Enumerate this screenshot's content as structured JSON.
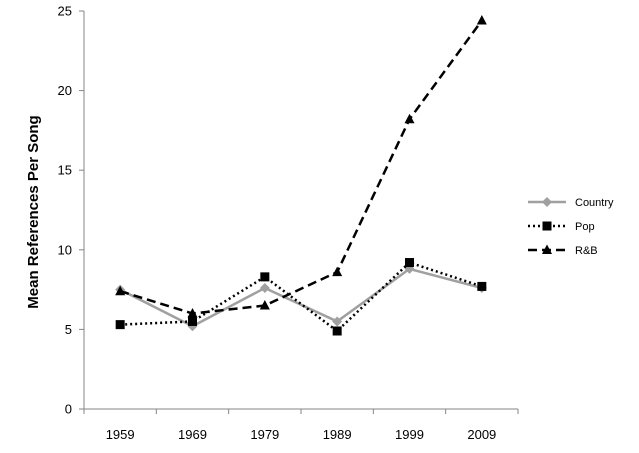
{
  "chart_data": {
    "type": "line",
    "title": "",
    "xlabel": "",
    "ylabel": "Mean References Per Song",
    "ylim": [
      0,
      25
    ],
    "yticks": [
      0,
      5,
      10,
      15,
      20,
      25
    ],
    "categories": [
      "1959",
      "1969",
      "1979",
      "1989",
      "1999",
      "2009"
    ],
    "grid": false,
    "legend_position": "right",
    "series": [
      {
        "name": "Country",
        "values": [
          7.5,
          5.2,
          7.6,
          5.5,
          8.8,
          7.6
        ],
        "color": "#a0a0a0",
        "line_style": "solid",
        "marker": "diamond"
      },
      {
        "name": "Pop",
        "values": [
          5.3,
          5.5,
          8.3,
          4.9,
          9.2,
          7.7
        ],
        "color": "#000000",
        "line_style": "dotted",
        "marker": "square"
      },
      {
        "name": "R&B",
        "values": [
          7.4,
          6.0,
          6.5,
          8.6,
          18.2,
          24.4
        ],
        "color": "#000000",
        "line_style": "dashed",
        "marker": "triangle"
      }
    ]
  }
}
